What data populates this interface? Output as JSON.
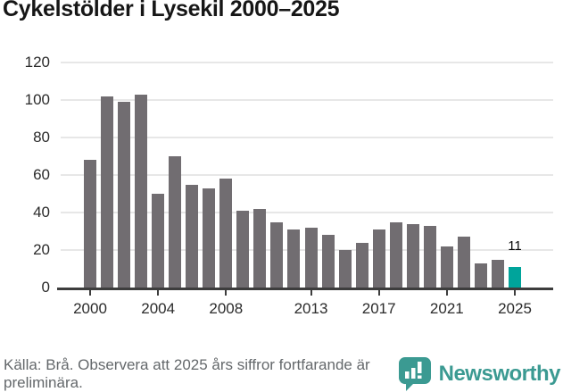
{
  "header": {
    "title": "Cykelstölder i Lysekil 2000–2025"
  },
  "chart_data": {
    "type": "bar",
    "title": "Cykelstölder i Lysekil 2000–2025",
    "x": [
      2000,
      2001,
      2002,
      2003,
      2004,
      2005,
      2006,
      2007,
      2008,
      2009,
      2010,
      2011,
      2012,
      2013,
      2014,
      2015,
      2016,
      2017,
      2018,
      2019,
      2020,
      2021,
      2022,
      2023,
      2024,
      2025
    ],
    "values": [
      68,
      102,
      99,
      103,
      50,
      70,
      55,
      53,
      58,
      41,
      42,
      35,
      31,
      32,
      28,
      20,
      24,
      31,
      35,
      34,
      33,
      22,
      27,
      13,
      15,
      11
    ],
    "ylim": [
      0,
      120
    ],
    "yticks": [
      0,
      20,
      40,
      60,
      80,
      100,
      120
    ],
    "xtick_years": [
      2000,
      2004,
      2008,
      2013,
      2017,
      2021,
      2025
    ],
    "xtick_labels": [
      "2000",
      "2004",
      "2008",
      "2013",
      "2017",
      "2021",
      "2025"
    ],
    "highlight_year": 2025,
    "annotation": {
      "year": 2025,
      "label": "11"
    },
    "grid": true,
    "legend": false,
    "colors": {
      "bar": "#716d71",
      "highlight": "#00a49b",
      "gridline": "#e7e7e7",
      "axis": "#3d3d3d"
    }
  },
  "footer": {
    "note": "Källa: Brå. Observera att 2025 års siffror fortfarande är preliminära.",
    "brand": "Newsworthy",
    "brand_color": "#3b9a92"
  }
}
